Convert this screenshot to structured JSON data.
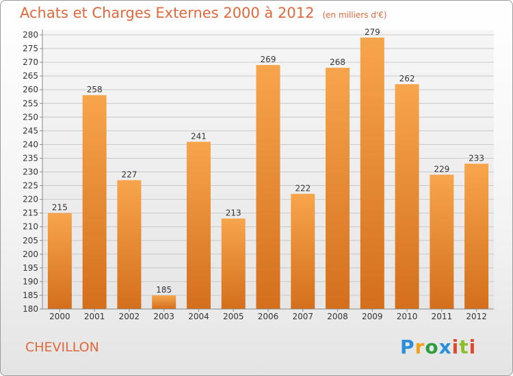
{
  "title": "Achats et Charges Externes 2000 à 2012",
  "subtitle": "(en milliers d'€)",
  "city": "CHEVILLON",
  "logo": {
    "p": "P",
    "r": "r",
    "o": "o",
    "x": "x",
    "i": "i",
    "t": "t",
    "i2": "i"
  },
  "colors": {
    "bar_light": "#f7a54c",
    "bar_dark": "#d46f1c",
    "title": "#e0683a"
  },
  "chart_data": {
    "type": "bar",
    "categories": [
      "2000",
      "2001",
      "2002",
      "2003",
      "2004",
      "2005",
      "2006",
      "2007",
      "2008",
      "2009",
      "2010",
      "2011",
      "2012"
    ],
    "values": [
      215,
      258,
      227,
      185,
      241,
      213,
      269,
      222,
      268,
      279,
      262,
      229,
      233
    ],
    "title": "Achats et Charges Externes 2000 à 2012",
    "xlabel": "",
    "ylabel": "",
    "ylim": [
      180,
      280
    ],
    "yticks": [
      180,
      185,
      190,
      195,
      200,
      205,
      210,
      215,
      220,
      225,
      230,
      235,
      240,
      245,
      250,
      255,
      260,
      265,
      270,
      275,
      280
    ],
    "grid": true
  }
}
